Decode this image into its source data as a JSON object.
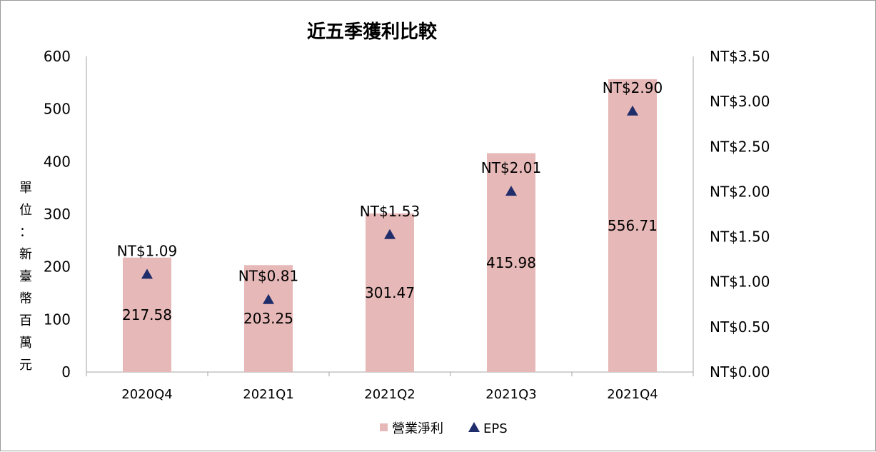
{
  "chart_data": {
    "type": "bar",
    "title": "近五季獲利比較",
    "ylabel": "單位：新臺幣百萬元",
    "ylabel_chars": [
      "單",
      "位",
      "：",
      "新",
      "臺",
      "幣",
      "百",
      "萬",
      "元"
    ],
    "categories": [
      "2020Q4",
      "2021Q1",
      "2021Q2",
      "2021Q3",
      "2021Q4"
    ],
    "series": [
      {
        "name": "營業淨利",
        "type": "bar",
        "axis": "left",
        "color": "#e6b8b7",
        "values": [
          217.58,
          203.25,
          301.47,
          415.98,
          556.71
        ],
        "labels": [
          "217.58",
          "203.25",
          "301.47",
          "415.98",
          "556.71"
        ]
      },
      {
        "name": "EPS",
        "type": "scatter",
        "marker": "triangle",
        "axis": "right",
        "color": "#1f2d6b",
        "values": [
          1.09,
          0.81,
          1.53,
          2.01,
          2.9
        ],
        "labels": [
          "NT$1.09",
          "NT$0.81",
          "NT$1.53",
          "NT$2.01",
          "NT$2.90"
        ]
      }
    ],
    "y_left": {
      "range": [
        0,
        600
      ],
      "ticks": [
        0,
        100,
        200,
        300,
        400,
        500,
        600
      ],
      "tick_labels": [
        "0",
        "100",
        "200",
        "300",
        "400",
        "500",
        "600"
      ]
    },
    "y_right": {
      "range": [
        0,
        3.5
      ],
      "ticks": [
        0,
        0.5,
        1,
        1.5,
        2,
        2.5,
        3,
        3.5
      ],
      "tick_labels": [
        "NT$0.00",
        "NT$0.50",
        "NT$1.00",
        "NT$1.50",
        "NT$2.00",
        "NT$2.50",
        "NT$3.00",
        "NT$3.50"
      ]
    },
    "grid": false,
    "legend_position": "bottom"
  }
}
